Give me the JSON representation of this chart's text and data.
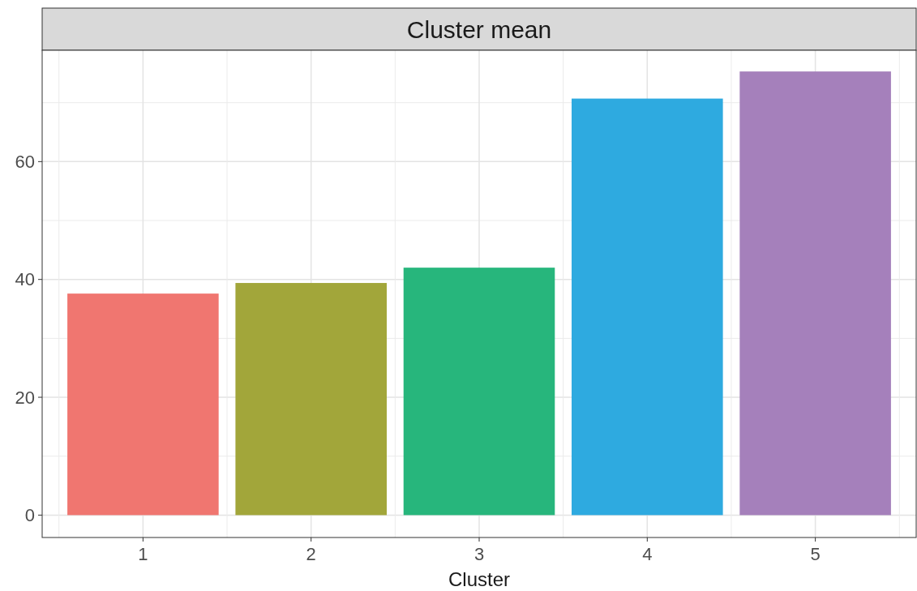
{
  "chart_data": {
    "type": "bar",
    "title": "Cluster mean",
    "xlabel": "Cluster",
    "categories": [
      "1",
      "2",
      "3",
      "4",
      "5"
    ],
    "values": [
      37.6,
      39.4,
      42.0,
      70.7,
      75.3
    ],
    "colors": [
      "#f07670",
      "#a2a63a",
      "#27b67c",
      "#2eaae0",
      "#a580bb"
    ],
    "ylim": [
      -3.8,
      78.9
    ],
    "yticks": [
      0,
      20,
      40,
      60
    ],
    "grid": true
  }
}
